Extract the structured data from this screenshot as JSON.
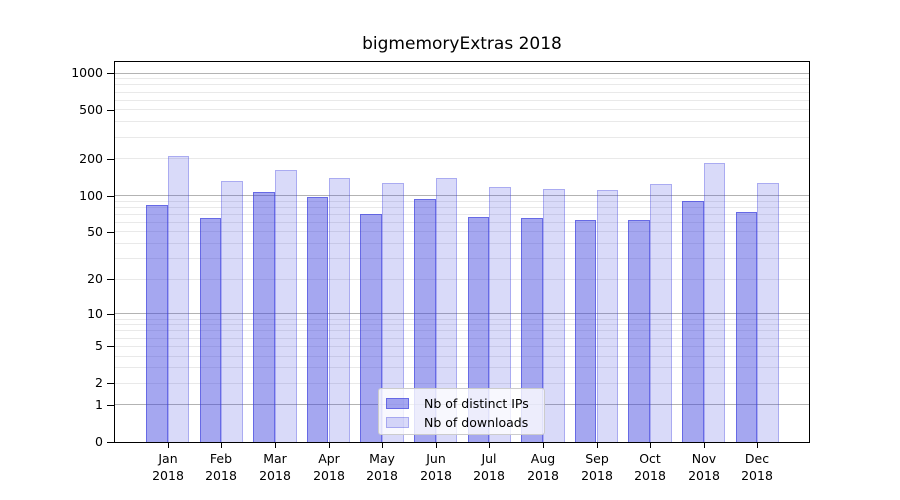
{
  "chart_data": {
    "type": "bar",
    "title": "bigmemoryExtras 2018",
    "categories": [
      "Jan",
      "Feb",
      "Mar",
      "Apr",
      "May",
      "Jun",
      "Jul",
      "Aug",
      "Sep",
      "Oct",
      "Nov",
      "Dec"
    ],
    "x_year_label": "2018",
    "series": [
      {
        "name": "Nb of distinct IPs",
        "values": [
          83,
          65,
          106,
          97,
          70,
          93,
          66,
          65,
          63,
          63,
          91,
          73
        ],
        "fill": "rgba(55,59,222,0.45)",
        "edge": "rgba(55,59,222,0.56)"
      },
      {
        "name": "Nb of downloads",
        "values": [
          209,
          132,
          162,
          140,
          126,
          140,
          118,
          114,
          112,
          124,
          185,
          127
        ],
        "fill": "rgba(55,59,222,0.19)",
        "edge": "rgba(55,59,222,0.29)"
      }
    ],
    "y_axis": {
      "scale": "log1p",
      "tick_values": [
        0,
        1,
        2,
        5,
        10,
        20,
        50,
        100,
        200,
        500,
        1000
      ],
      "minor_gridlines": [
        2,
        3,
        4,
        5,
        6,
        7,
        8,
        9,
        20,
        30,
        40,
        50,
        60,
        70,
        80,
        90,
        200,
        300,
        400,
        500,
        600,
        700,
        800,
        900
      ],
      "major_gridlines": [
        1,
        10,
        100,
        1000
      ],
      "top_value": 1000
    },
    "grid": true,
    "legend_position": "inside-bottom-center"
  },
  "colors": {
    "bar_primary_blended": "#a5a7f0",
    "bar_secondary_blended": "#d9dbf8",
    "grid_minor": "#e9e9e9",
    "grid_major": "#b3b3b3",
    "axis": "#000000",
    "legend_border": "#cccccc",
    "background": "#ffffff"
  }
}
